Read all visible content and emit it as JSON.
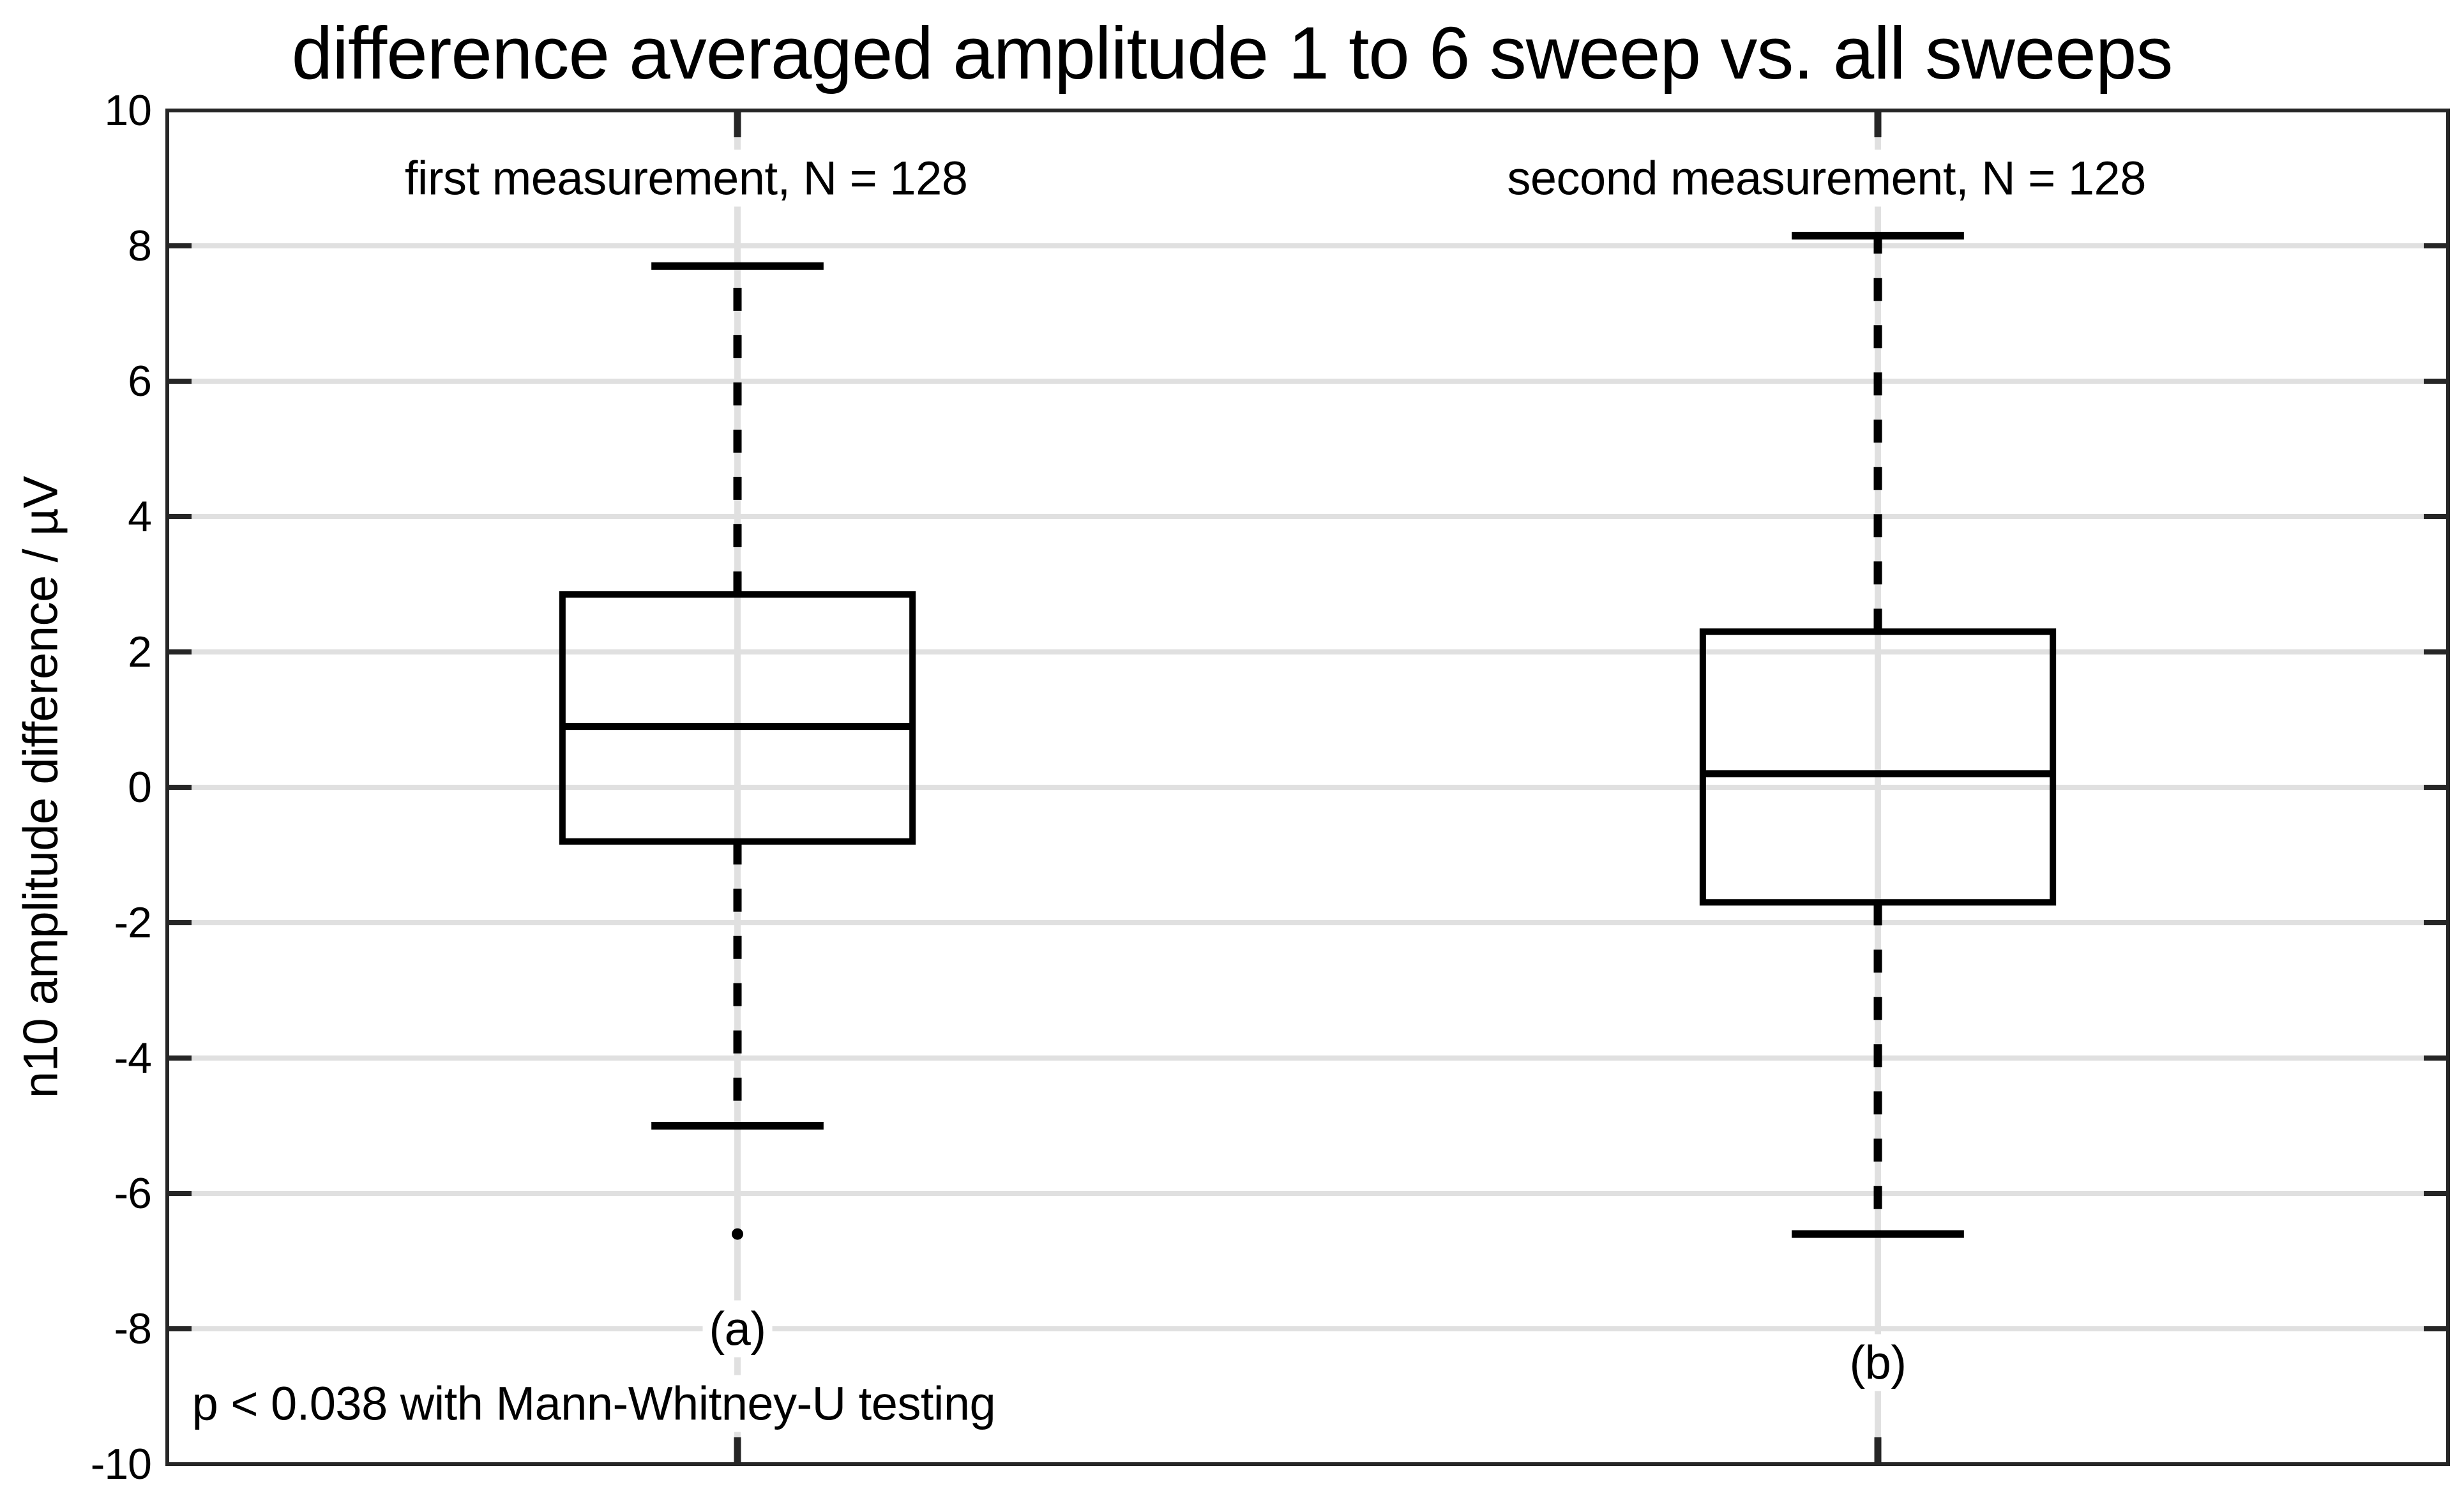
{
  "title": "difference averaged amplitude 1 to 6 sweep vs. all sweeps",
  "colors": {
    "background": "#ffffff",
    "text": "#000000",
    "data_line": "#000000",
    "frame": "#262626",
    "tick": "#262626",
    "grid": "#e0e0e0"
  },
  "chart_data": {
    "type": "boxplot",
    "title": "difference averaged amplitude 1 to 6 sweep vs. all sweeps",
    "ylabel": "n10 amplitude difference / µV",
    "xlabel": "",
    "ylim": [
      -10,
      10
    ],
    "yticks": [
      10,
      8,
      6,
      4,
      2,
      0,
      -2,
      -4,
      -6,
      -8,
      -10
    ],
    "xlim": [
      0.5,
      2.5
    ],
    "xticks": [
      1,
      2
    ],
    "grid": true,
    "legend": null,
    "box_width_units": 0.307,
    "cap_width_units": 0.151,
    "groups": [
      {
        "name": "first measurement",
        "n": 128,
        "x": 1,
        "whisker_low": -5.0,
        "q1": -0.8,
        "median": 0.9,
        "q3": 2.85,
        "whisker_high": 7.7,
        "outliers": [
          -6.6
        ]
      },
      {
        "name": "second measurement",
        "n": 128,
        "x": 2,
        "whisker_low": -6.6,
        "q1": -1.7,
        "median": 0.2,
        "q3": 2.3,
        "whisker_high": 8.15,
        "outliers": []
      }
    ],
    "texts": [
      {
        "name": "first-measurement-label",
        "text": "first measurement, N = 128",
        "x": 0.955,
        "y": 9.0,
        "align": "center"
      },
      {
        "name": "second-measurement-label",
        "text": "second measurement, N = 128",
        "x": 1.955,
        "y": 9.0,
        "align": "center"
      },
      {
        "name": "group-a-tick-label",
        "text": "(a)",
        "x": 1.0,
        "y": -8.0,
        "align": "center"
      },
      {
        "name": "group-b-tick-label",
        "text": "(b)",
        "x": 2.0,
        "y": -8.5,
        "align": "center"
      },
      {
        "name": "stat-note",
        "text": "p < 0.038 with Mann-Whitney-U testing",
        "x": 0.516,
        "y": -9.1,
        "align": "left"
      }
    ]
  }
}
